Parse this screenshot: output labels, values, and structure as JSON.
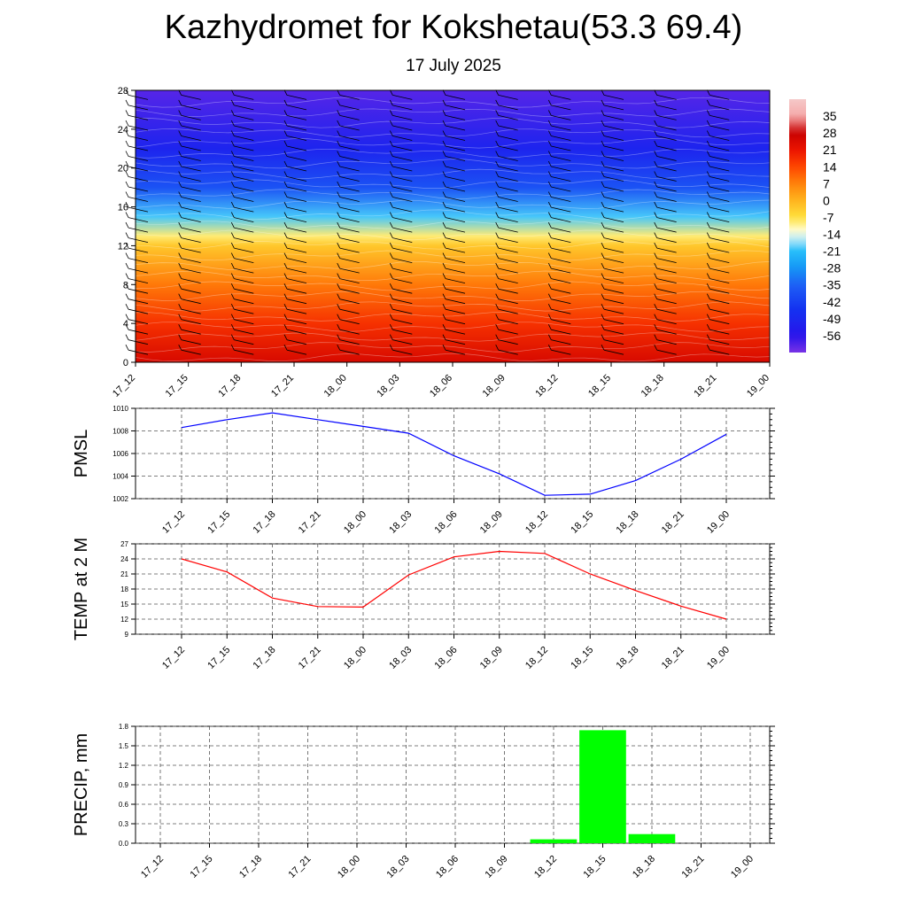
{
  "title": "Kazhydromet for Kokshetau(53.3 69.4)",
  "subtitle": "17 July 2025",
  "time_labels": [
    "17_12",
    "17_15",
    "17_18",
    "17_21",
    "18_00",
    "18_03",
    "18_06",
    "18_09",
    "18_12",
    "18_15",
    "18_18",
    "18_21",
    "19_00"
  ],
  "chart_data": [
    {
      "type": "heatmap",
      "name": "vertical-temperature-cross-section",
      "x": [
        "17_12",
        "17_15",
        "17_18",
        "17_21",
        "18_00",
        "18_03",
        "18_06",
        "18_09",
        "18_12",
        "18_15",
        "18_18",
        "18_21",
        "19_00"
      ],
      "ylim": [
        0,
        28
      ],
      "yticks": [
        0,
        4,
        8,
        12,
        16,
        20,
        24,
        28
      ],
      "colorbar_labels": [
        "35",
        "28",
        "21",
        "14",
        "7",
        "0",
        "-7",
        "-14",
        "-21",
        "-28",
        "-35",
        "-42",
        "-49",
        "-56"
      ],
      "colorbar_range": [
        -63,
        42
      ],
      "temperature_by_level": [
        {
          "level": 0,
          "value": 25
        },
        {
          "level": 4,
          "value": 17
        },
        {
          "level": 8,
          "value": 8
        },
        {
          "level": 12,
          "value": -3
        },
        {
          "level": 13,
          "value": -9
        },
        {
          "level": 15,
          "value": -20
        },
        {
          "level": 18,
          "value": -38
        },
        {
          "level": 22,
          "value": -50
        },
        {
          "level": 28,
          "value": -60
        }
      ],
      "wind_barbs": true,
      "colors": {
        "warm": "#e00000",
        "orange": "#ff8c00",
        "yellow": "#ffe84d",
        "cold": "#1040ff",
        "deep": "#1a10ee"
      }
    },
    {
      "type": "line",
      "name": "pmsl",
      "ylabel": "PMSL",
      "x": [
        "17_12",
        "17_15",
        "17_18",
        "17_21",
        "18_00",
        "18_03",
        "18_06",
        "18_09",
        "18_12",
        "18_15",
        "18_18",
        "18_21",
        "19_00"
      ],
      "values": [
        1008.3,
        1009.0,
        1009.6,
        1009.0,
        1008.4,
        1007.8,
        1005.8,
        1004.2,
        1002.3,
        1002.4,
        1003.6,
        1005.5,
        1007.7
      ],
      "ylim": [
        1002,
        1010
      ],
      "yticks": [
        1002,
        1004,
        1006,
        1008,
        1010
      ],
      "color": "#0000ff",
      "grid": true
    },
    {
      "type": "line",
      "name": "temp-2m",
      "ylabel": "TEMP at 2 M",
      "x": [
        "17_12",
        "17_15",
        "17_18",
        "17_21",
        "18_00",
        "18_03",
        "18_06",
        "18_09",
        "18_12",
        "18_15",
        "18_18",
        "18_21",
        "19_00"
      ],
      "values": [
        24.0,
        21.4,
        16.2,
        14.5,
        14.4,
        20.8,
        24.4,
        25.5,
        25.1,
        21.0,
        17.7,
        14.6,
        12.0
      ],
      "ylim": [
        9,
        27
      ],
      "yticks": [
        9,
        12,
        15,
        18,
        21,
        24,
        27
      ],
      "color": "#ff0000",
      "grid": true
    },
    {
      "type": "bar",
      "name": "precipitation",
      "ylabel": "PRECIP, mm",
      "categories": [
        "17_12",
        "17_15",
        "17_18",
        "17_21",
        "18_00",
        "18_03",
        "18_06",
        "18_09",
        "18_12",
        "18_15",
        "18_18",
        "18_21",
        "19_00"
      ],
      "values": [
        0,
        0,
        0,
        0,
        0,
        0,
        0,
        0,
        0.06,
        1.74,
        0.14,
        0,
        0
      ],
      "ylim": [
        0,
        1.8
      ],
      "yticks": [
        "0.0",
        "0.3",
        "0.6",
        "0.9",
        "1.2",
        "1.5",
        "1.8"
      ],
      "color": "#00ff00",
      "grid": true
    }
  ]
}
